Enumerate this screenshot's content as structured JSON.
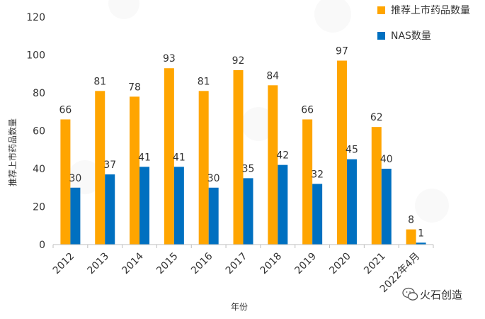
{
  "chart_data": {
    "type": "bar",
    "categories": [
      "2012",
      "2013",
      "2014",
      "2015",
      "2016",
      "2017",
      "2018",
      "2019",
      "2020",
      "2021",
      "2022年4月"
    ],
    "series": [
      {
        "name": "推荐上市药品数量",
        "values": [
          66,
          81,
          78,
          93,
          81,
          92,
          84,
          66,
          97,
          62,
          8
        ],
        "color": "#FFA500"
      },
      {
        "name": "NAS数量",
        "values": [
          30,
          37,
          41,
          41,
          30,
          35,
          42,
          32,
          45,
          40,
          1
        ],
        "color": "#0070C0"
      }
    ],
    "ylim": [
      0,
      120
    ],
    "yticks": [
      0,
      20,
      40,
      60,
      80,
      100,
      120
    ],
    "xlabel": "年份",
    "ylabel": "推荐上市药品数量",
    "legend_position": "top-right",
    "grid": false,
    "data_labels": true
  },
  "watermark": {
    "brand": "火石创造",
    "icon": "wechat-icon"
  }
}
